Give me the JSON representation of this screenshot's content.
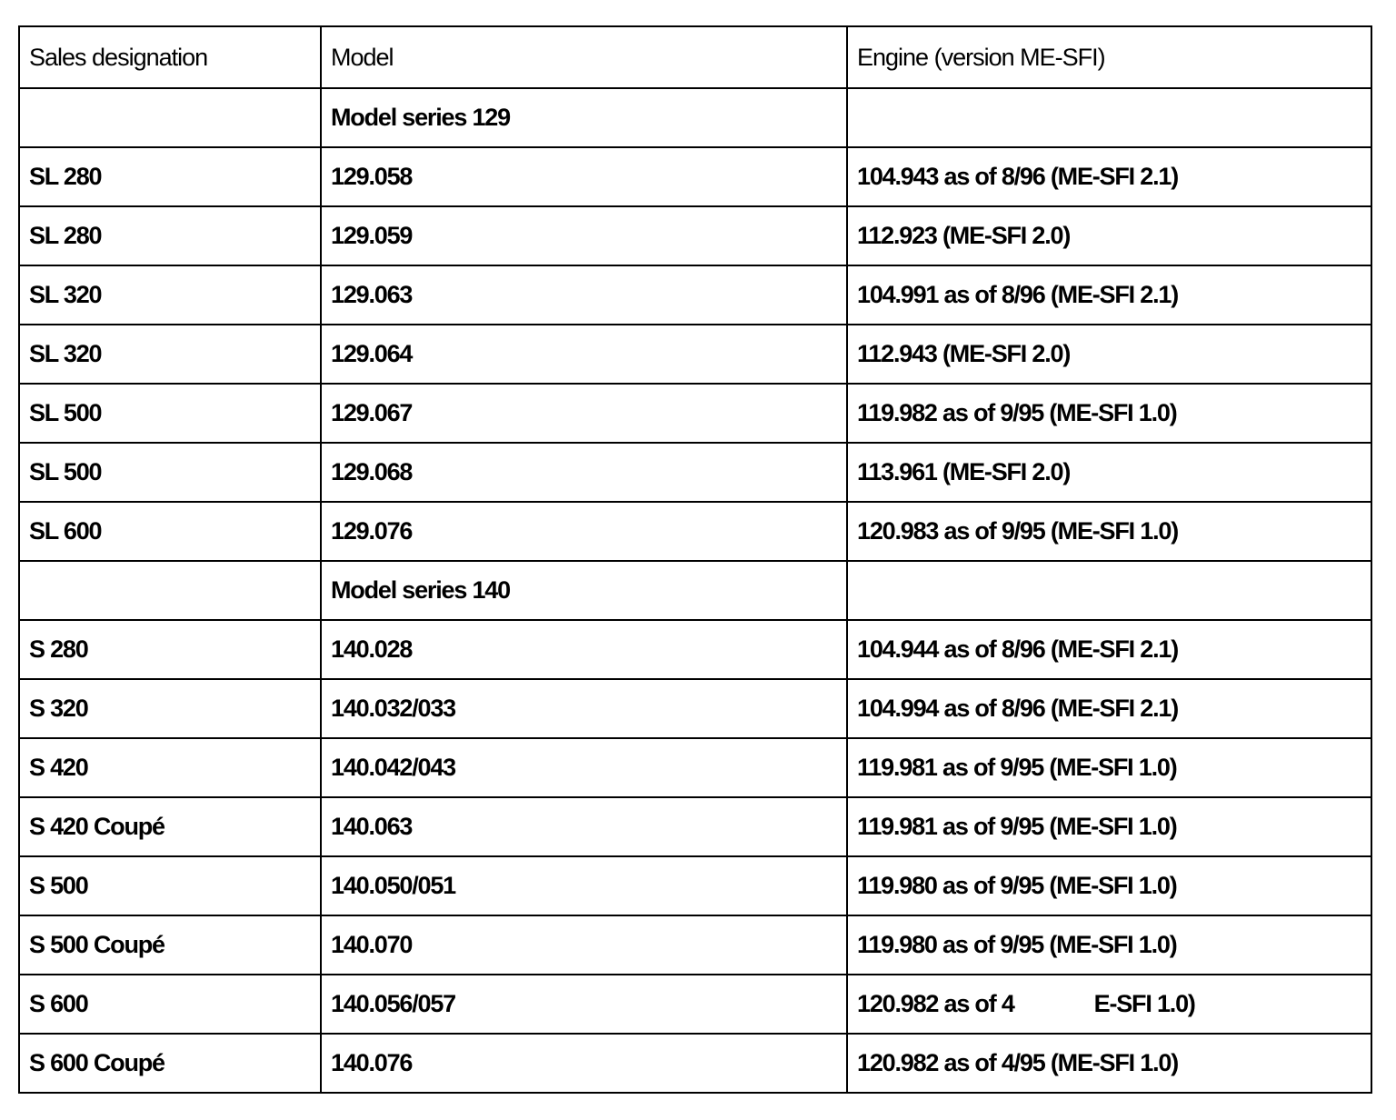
{
  "headers": [
    "Sales designation",
    "Model",
    "Engine (version ME-SFI)"
  ],
  "rows": [
    {
      "type": "series",
      "model": "Model series 129"
    },
    {
      "designation": "SL 280",
      "model": "129.058",
      "engine": "104.943 as of 8/96 (ME-SFI 2.1)"
    },
    {
      "designation": "SL 280",
      "model": "129.059",
      "engine": "112.923 (ME-SFI 2.0)"
    },
    {
      "designation": "SL 320",
      "model": "129.063",
      "engine": "104.991 as of 8/96 (ME-SFI 2.1)"
    },
    {
      "designation": "SL 320",
      "model": "129.064",
      "engine": "112.943 (ME-SFI 2.0)"
    },
    {
      "designation": "SL 500",
      "model": "129.067",
      "engine": "119.982 as of 9/95 (ME-SFI 1.0)"
    },
    {
      "designation": "SL 500",
      "model": "129.068",
      "engine": "113.961 (ME-SFI 2.0)"
    },
    {
      "designation": "SL 600",
      "model": "129.076",
      "engine": "120.983 as of 9/95 (ME-SFI 1.0)"
    },
    {
      "type": "series",
      "model": "Model series 140"
    },
    {
      "designation": "S 280",
      "model": "140.028",
      "engine": "104.944 as of 8/96 (ME-SFI 2.1)"
    },
    {
      "designation": "S 320",
      "model": "140.032/033",
      "engine": "104.994 as of 8/96 (ME-SFI 2.1)"
    },
    {
      "designation": "S 420",
      "model": "140.042/043",
      "engine": "119.981 as of 9/95 (ME-SFI 1.0)"
    },
    {
      "designation": "S 420 Coupé",
      "model": "140.063",
      "engine": "119.981 as of 9/95 (ME-SFI 1.0)"
    },
    {
      "designation": "S 500",
      "model": "140.050/051",
      "engine": "119.980 as of 9/95 (ME-SFI 1.0)"
    },
    {
      "designation": "S 500 Coupé",
      "model": "140.070",
      "engine": "119.980 as of 9/95 (ME-SFI 1.0)"
    },
    {
      "designation": "S 600",
      "model": "140.056/057",
      "engine_parts": [
        "120.982 as of 4",
        "E-SFI 1.0)"
      ]
    },
    {
      "designation": "S 600 Coupé",
      "model": "140.076",
      "engine": "120.982 as of 4/95 (ME-SFI 1.0)"
    }
  ]
}
